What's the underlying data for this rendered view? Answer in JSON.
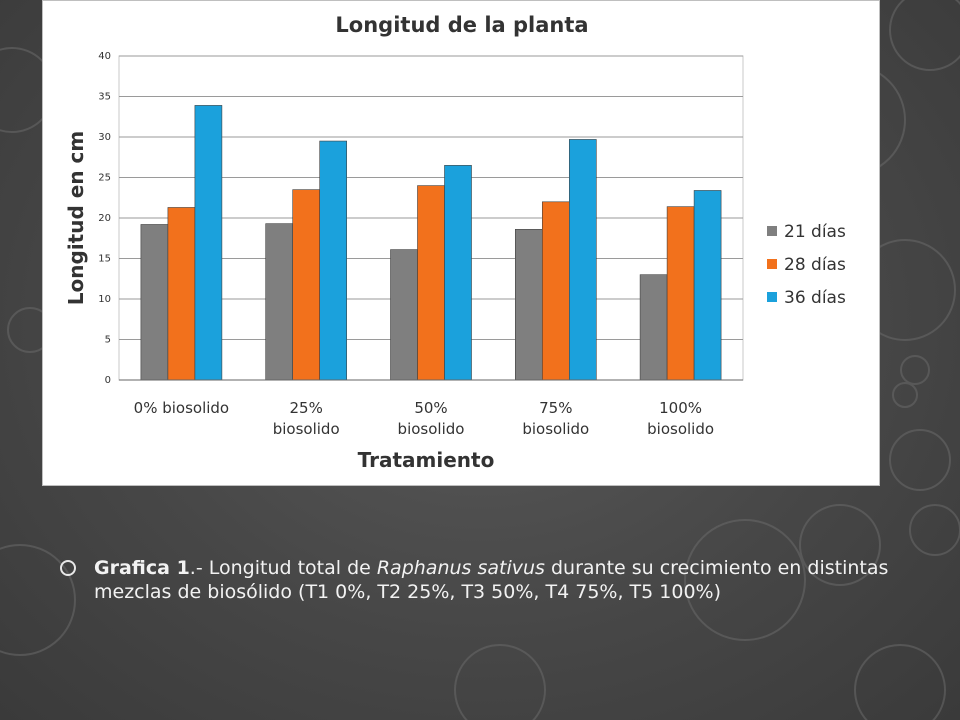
{
  "chart_data": {
    "type": "bar",
    "title": "Longitud de la planta",
    "xlabel": "Tratamiento",
    "ylabel": "Longitud en cm",
    "ylim": [
      0,
      40
    ],
    "yticks": [
      "0",
      "5",
      "10",
      "15",
      "20",
      "25",
      "30",
      "35",
      "40"
    ],
    "categories": [
      "0% biosolido",
      "25% biosolido",
      "50% biosolido",
      "75% biosolido",
      "100% biosolido"
    ],
    "series": [
      {
        "name": "21 días",
        "color": "#7f7f7f",
        "values": [
          19.2,
          19.3,
          16.1,
          18.6,
          13.0
        ]
      },
      {
        "name": "28 días",
        "color": "#f2711c",
        "values": [
          21.3,
          23.5,
          24.0,
          22.0,
          21.4
        ]
      },
      {
        "name": "36 días",
        "color": "#1ba1dc",
        "values": [
          33.9,
          29.5,
          26.5,
          29.7,
          23.4
        ]
      }
    ],
    "grid": true,
    "legend_position": "right"
  },
  "caption": {
    "lead": "Grafica 1",
    "separator": ".- ",
    "text_before": "Longitud total de ",
    "species": "Raphanus sativus",
    "text_after": " durante su crecimiento en distintas mezclas de biosólido (T1 0%, T2 25%, T3 50%, T4 75%, T5 100%)"
  }
}
